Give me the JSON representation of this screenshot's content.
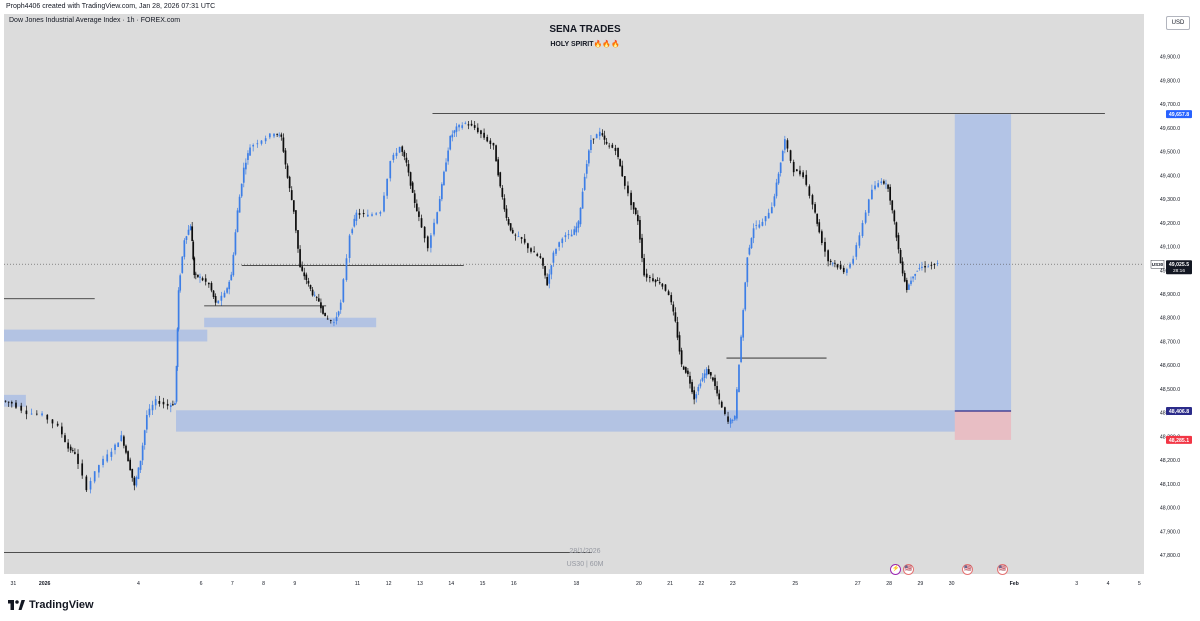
{
  "caption": "Proph4406 created with TradingView.com, Jan 28, 2026 07:31 UTC",
  "symbol_header": "Dow Jones Industrial Average Index · 1h · FOREX.com",
  "title": "SENA TRADES",
  "subtitle": "HOLY SPIRIT🔥🔥🔥",
  "currency": "USD",
  "watermark": {
    "date": "28/1/2026",
    "symbol": "US30 | 60M"
  },
  "brand": "TradingView",
  "colors": {
    "plot_bg": "#dcdcdc",
    "candle_up": "#3d7ee6",
    "candle_down": "#0d0d0d",
    "zone": "#b3c3e3",
    "target_zone": "#b0c2e6",
    "stop_zone": "#e8bec4",
    "entry_line": "#2c2c8a",
    "label_blue": "#2962ff",
    "label_red": "#f23645"
  },
  "events": [
    {
      "type": "flash",
      "icon": "lightning-icon",
      "glyph": "⚡"
    },
    {
      "type": "flag",
      "icon": "us-flag-icon",
      "glyph": "🇺🇸"
    },
    {
      "type": "flag",
      "icon": "us-flag-icon",
      "glyph": "🇺🇸"
    },
    {
      "type": "flag",
      "icon": "us-flag-icon",
      "glyph": "🇺🇸"
    }
  ],
  "chart_data": {
    "type": "candlestick",
    "interval": "1h",
    "y_axis": {
      "ticks": [
        47800,
        47900,
        48000,
        48100,
        48200,
        48300,
        48400,
        48500,
        48600,
        48700,
        48800,
        48900,
        49000,
        49100,
        49200,
        49300,
        49400,
        49500,
        49600,
        49700,
        49800,
        49900
      ],
      "tick_labels": [
        "47,800.0",
        "47,900.0",
        "48,000.0",
        "48,100.0",
        "48,200.0",
        "48,300.0",
        "48,400.0",
        "48,500.0",
        "48,600.0",
        "48,700.0",
        "48,800.0",
        "48,900.0",
        "49,000.0",
        "49,100.0",
        "49,200.0",
        "49,300.0",
        "49,400.0",
        "49,500.0",
        "49,600.0",
        "49,700.0",
        "49,800.0",
        "49,900.0"
      ],
      "range": [
        47720,
        50080
      ]
    },
    "x_axis": {
      "ticks": [
        {
          "label": "31",
          "day": 31
        },
        {
          "label": "2026",
          "day": 32
        },
        {
          "label": "4",
          "day": 35
        },
        {
          "label": "6",
          "day": 37
        },
        {
          "label": "7",
          "day": 38
        },
        {
          "label": "8",
          "day": 39
        },
        {
          "label": "9",
          "day": 40
        },
        {
          "label": "11",
          "day": 42
        },
        {
          "label": "12",
          "day": 43
        },
        {
          "label": "13",
          "day": 44
        },
        {
          "label": "14",
          "day": 45
        },
        {
          "label": "15",
          "day": 46
        },
        {
          "label": "16",
          "day": 47
        },
        {
          "label": "18",
          "day": 49
        },
        {
          "label": "20",
          "day": 51
        },
        {
          "label": "21",
          "day": 52
        },
        {
          "label": "22",
          "day": 53
        },
        {
          "label": "23",
          "day": 54
        },
        {
          "label": "25",
          "day": 56
        },
        {
          "label": "27",
          "day": 58
        },
        {
          "label": "28",
          "day": 59
        },
        {
          "label": "29",
          "day": 60
        },
        {
          "label": "30",
          "day": 61
        },
        {
          "label": "Feb",
          "day": 63
        },
        {
          "label": "3",
          "day": 65
        },
        {
          "label": "4",
          "day": 66
        },
        {
          "label": "5",
          "day": 67
        }
      ],
      "range": [
        30.7,
        67.15
      ]
    },
    "price_path": [
      [
        30.7,
        48450
      ],
      [
        31.0,
        48440
      ],
      [
        31.5,
        48400
      ],
      [
        32.0,
        48390
      ],
      [
        32.5,
        48340
      ],
      [
        32.8,
        48250
      ],
      [
        33.0,
        48230
      ],
      [
        33.4,
        48080
      ],
      [
        33.8,
        48180
      ],
      [
        34.2,
        48240
      ],
      [
        34.5,
        48300
      ],
      [
        34.7,
        48200
      ],
      [
        34.9,
        48090
      ],
      [
        35.1,
        48200
      ],
      [
        35.3,
        48390
      ],
      [
        35.6,
        48450
      ],
      [
        36.0,
        48430
      ],
      [
        36.2,
        48440
      ],
      [
        36.3,
        48910
      ],
      [
        36.5,
        49130
      ],
      [
        36.7,
        49190
      ],
      [
        36.8,
        48980
      ],
      [
        37.0,
        48970
      ],
      [
        37.3,
        48940
      ],
      [
        37.5,
        48860
      ],
      [
        37.8,
        48900
      ],
      [
        38.0,
        48980
      ],
      [
        38.2,
        49250
      ],
      [
        38.4,
        49430
      ],
      [
        38.6,
        49520
      ],
      [
        39.0,
        49550
      ],
      [
        39.4,
        49580
      ],
      [
        39.6,
        49560
      ],
      [
        39.8,
        49390
      ],
      [
        40.0,
        49250
      ],
      [
        40.2,
        49010
      ],
      [
        40.4,
        48960
      ],
      [
        40.6,
        48900
      ],
      [
        40.8,
        48870
      ],
      [
        41.0,
        48800
      ],
      [
        41.3,
        48780
      ],
      [
        41.5,
        48860
      ],
      [
        41.8,
        49150
      ],
      [
        42.0,
        49240
      ],
      [
        42.4,
        49230
      ],
      [
        42.8,
        49250
      ],
      [
        43.1,
        49460
      ],
      [
        43.4,
        49520
      ],
      [
        43.6,
        49450
      ],
      [
        43.8,
        49320
      ],
      [
        44.0,
        49220
      ],
      [
        44.3,
        49100
      ],
      [
        44.6,
        49250
      ],
      [
        44.8,
        49410
      ],
      [
        45.0,
        49560
      ],
      [
        45.2,
        49600
      ],
      [
        45.5,
        49620
      ],
      [
        45.8,
        49600
      ],
      [
        46.1,
        49560
      ],
      [
        46.4,
        49520
      ],
      [
        46.6,
        49350
      ],
      [
        46.8,
        49220
      ],
      [
        47.0,
        49150
      ],
      [
        47.3,
        49130
      ],
      [
        47.6,
        49080
      ],
      [
        47.9,
        49050
      ],
      [
        48.1,
        48940
      ],
      [
        48.3,
        49070
      ],
      [
        48.6,
        49140
      ],
      [
        48.9,
        49150
      ],
      [
        49.1,
        49200
      ],
      [
        49.3,
        49400
      ],
      [
        49.5,
        49550
      ],
      [
        49.8,
        49580
      ],
      [
        50.0,
        49530
      ],
      [
        50.3,
        49510
      ],
      [
        50.5,
        49400
      ],
      [
        50.8,
        49280
      ],
      [
        51.0,
        49210
      ],
      [
        51.2,
        48980
      ],
      [
        51.5,
        48960
      ],
      [
        51.7,
        48950
      ],
      [
        52.0,
        48900
      ],
      [
        52.2,
        48780
      ],
      [
        52.4,
        48600
      ],
      [
        52.6,
        48560
      ],
      [
        52.8,
        48460
      ],
      [
        53.0,
        48530
      ],
      [
        53.2,
        48580
      ],
      [
        53.4,
        48540
      ],
      [
        53.6,
        48450
      ],
      [
        53.9,
        48360
      ],
      [
        54.1,
        48380
      ],
      [
        54.3,
        48720
      ],
      [
        54.5,
        49060
      ],
      [
        54.7,
        49180
      ],
      [
        55.0,
        49200
      ],
      [
        55.3,
        49270
      ],
      [
        55.5,
        49410
      ],
      [
        55.7,
        49550
      ],
      [
        56.0,
        49420
      ],
      [
        56.3,
        49400
      ],
      [
        56.6,
        49280
      ],
      [
        56.8,
        49160
      ],
      [
        57.1,
        49040
      ],
      [
        57.3,
        49030
      ],
      [
        57.6,
        48990
      ],
      [
        57.9,
        49050
      ],
      [
        58.2,
        49200
      ],
      [
        58.5,
        49340
      ],
      [
        58.8,
        49380
      ],
      [
        59.0,
        49350
      ],
      [
        59.2,
        49200
      ],
      [
        59.4,
        49030
      ],
      [
        59.6,
        48920
      ],
      [
        59.8,
        48980
      ],
      [
        60.0,
        49010
      ],
      [
        60.3,
        49020
      ],
      [
        60.6,
        49025
      ]
    ],
    "current_price": 49025.5,
    "current_price_label": "49,025.5",
    "current_symbol": "US30",
    "countdown": "28:16",
    "target_price": 49657.8,
    "target_label": "49,657.8",
    "entry_price": 48406.8,
    "entry_label": "48,406.8",
    "stop_price": 48285.1,
    "stop_label": "48,285.1",
    "position": {
      "start": 61.1,
      "end": 62.9,
      "target": 49657.8,
      "entry": 48406.8,
      "stop": 48285.1
    },
    "zones": [
      {
        "start": 30.7,
        "end": 37.2,
        "top": 48750,
        "bottom": 48700
      },
      {
        "start": 37.1,
        "end": 42.6,
        "top": 48800,
        "bottom": 48760
      },
      {
        "start": 36.2,
        "end": 61.2,
        "top": 48410,
        "bottom": 48320
      },
      {
        "start": 30.7,
        "end": 31.4,
        "top": 48475,
        "bottom": 48425
      }
    ],
    "levels": [
      {
        "start": 30.7,
        "end": 33.6,
        "price": 48880
      },
      {
        "start": 37.1,
        "end": 41.0,
        "price": 48850
      },
      {
        "start": 38.3,
        "end": 45.4,
        "price": 49020
      },
      {
        "start": 53.8,
        "end": 57.0,
        "price": 48630
      },
      {
        "start": 44.4,
        "end": 65.9,
        "price": 49660
      },
      {
        "start": 30.7,
        "end": 49.5,
        "price": 47810
      }
    ],
    "event_days": [
      59.2,
      59.6,
      61.5,
      62.6
    ]
  }
}
